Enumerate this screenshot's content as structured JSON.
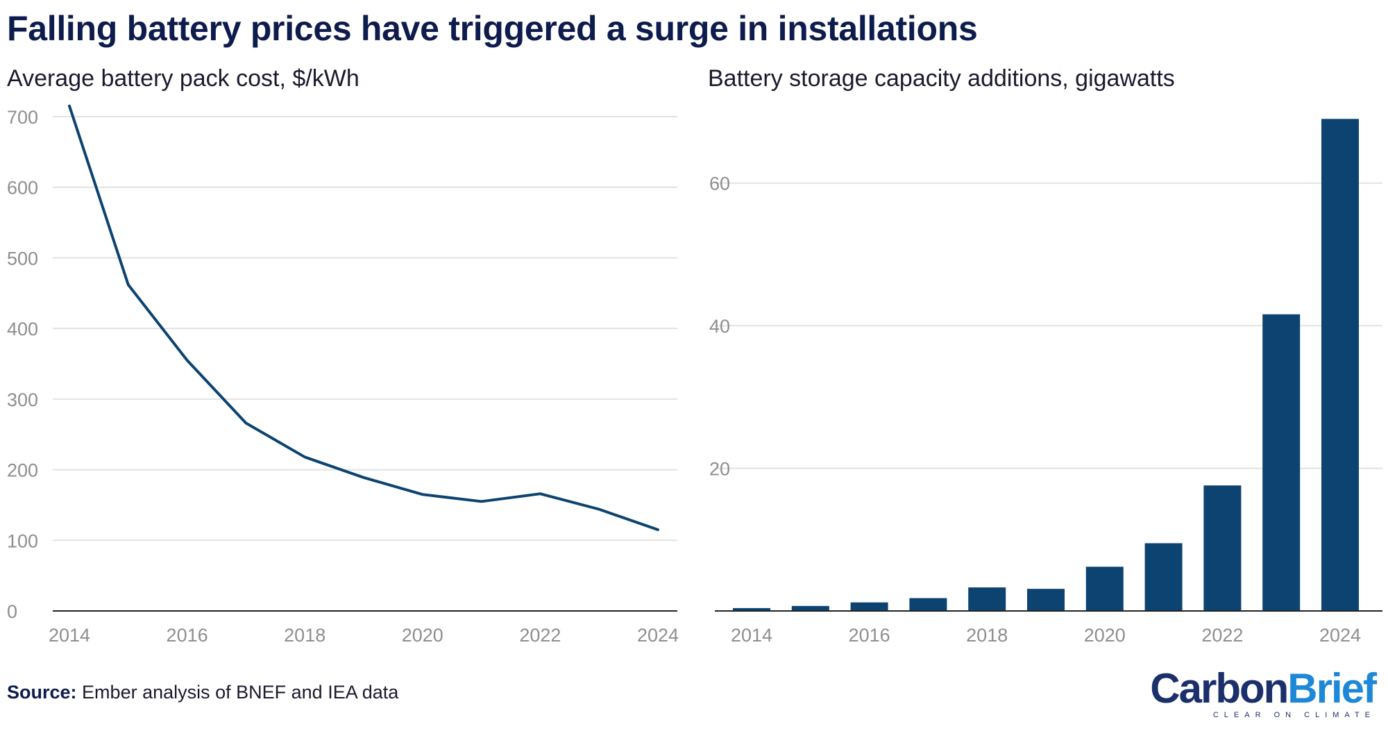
{
  "title": "Falling battery prices have triggered a surge in installations",
  "source_label": "Source:",
  "source_text": "Ember analysis of BNEF and IEA data",
  "logo": {
    "carbon": "Carbon",
    "brief": "Brief",
    "tagline": "CLEAR ON CLIMATE"
  },
  "colors": {
    "series": "#0c4370",
    "grid": "#e2e2e2",
    "axis": "#222222",
    "tick": "#8e8e8e",
    "title": "#0e1b4d"
  },
  "chart_data": [
    {
      "type": "line",
      "title": "Average battery pack cost, $/kWh",
      "xlabel": "",
      "ylabel": "$/kWh",
      "x": [
        2014,
        2015,
        2016,
        2017,
        2018,
        2019,
        2020,
        2021,
        2022,
        2023,
        2024
      ],
      "values": [
        715,
        462,
        355,
        266,
        218,
        189,
        165,
        155,
        166,
        144,
        115
      ],
      "xlim": [
        2014,
        2024
      ],
      "ylim": [
        0,
        700
      ],
      "y_ticks": [
        0,
        100,
        200,
        300,
        400,
        500,
        600,
        700
      ],
      "x_ticks": [
        2014,
        2016,
        2018,
        2020,
        2022,
        2024
      ],
      "grid": true
    },
    {
      "type": "bar",
      "title": "Battery storage capacity additions, gigawatts",
      "xlabel": "",
      "ylabel": "GW",
      "categories": [
        2014,
        2015,
        2016,
        2017,
        2018,
        2019,
        2020,
        2021,
        2022,
        2023,
        2024
      ],
      "values": [
        0.4,
        0.7,
        1.2,
        1.8,
        3.3,
        3.1,
        6.2,
        9.5,
        17.6,
        41.6,
        69.0
      ],
      "ylim": [
        0,
        70
      ],
      "y_ticks": [
        20,
        40,
        60
      ],
      "x_ticks": [
        2014,
        2016,
        2018,
        2020,
        2022,
        2024
      ],
      "grid": true
    }
  ]
}
